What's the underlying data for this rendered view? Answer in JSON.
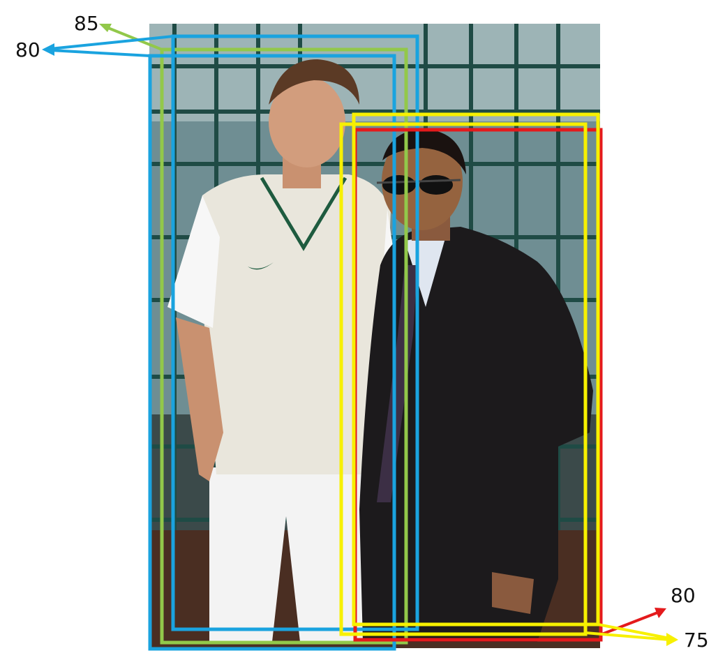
{
  "image": {
    "description_hidden": "",
    "scores": {
      "green": "85",
      "blue": "80",
      "red": "80",
      "yellow": "75"
    },
    "colors": {
      "green": "#92c84a",
      "blue": "#1aa3df",
      "red": "#e41a1c",
      "yellow": "#f7f000"
    }
  }
}
